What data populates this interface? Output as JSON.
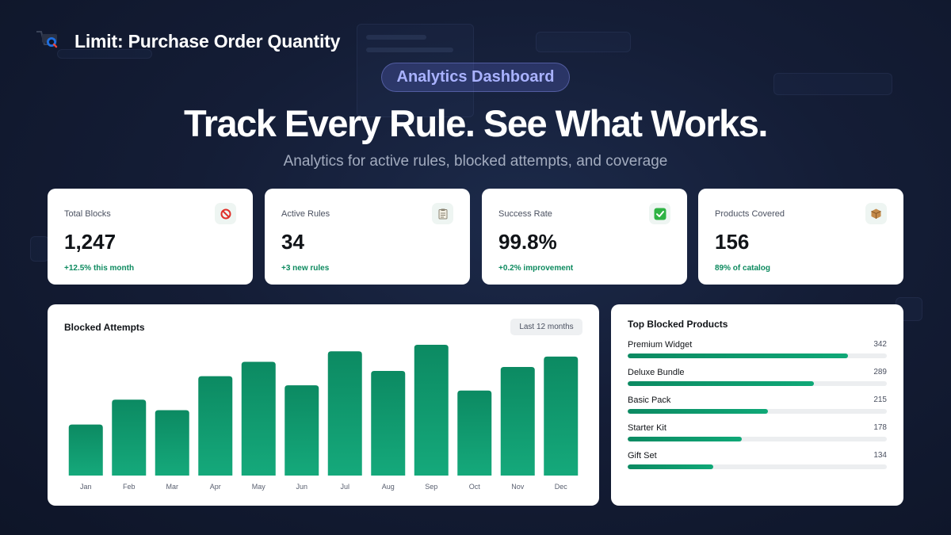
{
  "header": {
    "title": "Limit: Purchase Order Quantity",
    "badge": "Analytics Dashboard",
    "headline": "Track Every Rule. See What Works.",
    "subheadline": "Analytics for active rules, blocked attempts, and coverage"
  },
  "stats": [
    {
      "label": "Total Blocks",
      "value": "1,247",
      "delta": "+12.5% this month",
      "icon": "prohibited-icon"
    },
    {
      "label": "Active Rules",
      "value": "34",
      "delta": "+3 new rules",
      "icon": "clipboard-icon"
    },
    {
      "label": "Success Rate",
      "value": "99.8%",
      "delta": "+0.2% improvement",
      "icon": "check-icon"
    },
    {
      "label": "Products Covered",
      "value": "156",
      "delta": "89% of catalog",
      "icon": "package-icon"
    }
  ],
  "chart": {
    "title": "Blocked Attempts",
    "range_label": "Last 12 months"
  },
  "chart_data": {
    "type": "bar",
    "title": "Blocked Attempts",
    "categories": [
      "Jan",
      "Feb",
      "Mar",
      "Apr",
      "May",
      "Jun",
      "Jul",
      "Aug",
      "Sep",
      "Oct",
      "Nov",
      "Dec"
    ],
    "values": [
      39,
      58,
      50,
      76,
      87,
      69,
      95,
      80,
      100,
      65,
      83,
      91
    ],
    "ylim": [
      0,
      100
    ],
    "grid": false,
    "colors": {
      "bar_top": "#0c8a62",
      "bar_bottom": "#15a97b"
    }
  },
  "top_products": {
    "title": "Top Blocked Products",
    "items": [
      {
        "name": "Premium Widget",
        "count": "342",
        "fill": 0.85
      },
      {
        "name": "Deluxe Bundle",
        "count": "289",
        "fill": 0.72
      },
      {
        "name": "Basic Pack",
        "count": "215",
        "fill": 0.54
      },
      {
        "name": "Starter Kit",
        "count": "178",
        "fill": 0.44
      },
      {
        "name": "Gift Set",
        "count": "134",
        "fill": 0.33
      }
    ]
  },
  "colors": {
    "accent": "#0d8a5f",
    "badge_text": "#a9b2ff",
    "background": "#141d36"
  }
}
